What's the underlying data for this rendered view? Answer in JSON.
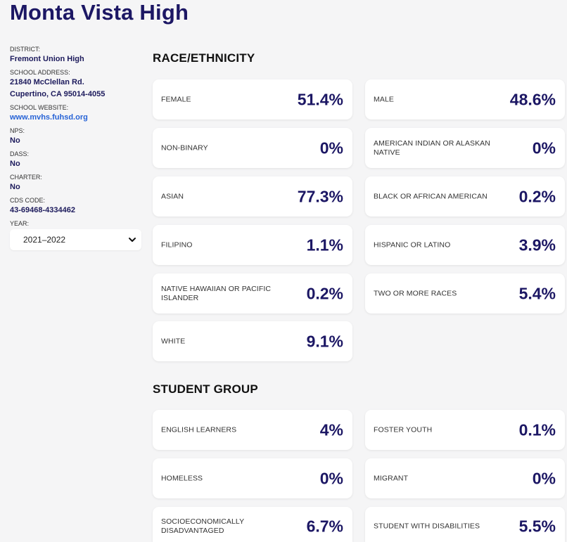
{
  "school": {
    "name": "Monta Vista High"
  },
  "sidebar": {
    "district_label": "DISTRICT:",
    "district": "Fremont Union High",
    "address_label": "SCHOOL ADDRESS:",
    "address_line1": "21840 McClellan Rd.",
    "address_line2": "Cupertino, CA 95014-4055",
    "website_label": "SCHOOL WEBSITE:",
    "website": "www.mvhs.fuhsd.org",
    "nps_label": "NPS:",
    "nps": "No",
    "dass_label": "DASS:",
    "dass": "No",
    "charter_label": "CHARTER:",
    "charter": "No",
    "cds_label": "CDS CODE:",
    "cds": "43-69468-4334462",
    "year_label": "YEAR:",
    "year": "2021–2022"
  },
  "race": {
    "title": "RACE/ETHNICITY",
    "cards": [
      {
        "label": "FEMALE",
        "value": "51.4%"
      },
      {
        "label": "MALE",
        "value": "48.6%"
      },
      {
        "label": "NON-BINARY",
        "value": "0%"
      },
      {
        "label": "AMERICAN INDIAN OR ALASKAN NATIVE",
        "value": "0%"
      },
      {
        "label": "ASIAN",
        "value": "77.3%"
      },
      {
        "label": "BLACK OR AFRICAN AMERICAN",
        "value": "0.2%"
      },
      {
        "label": "FILIPINO",
        "value": "1.1%"
      },
      {
        "label": "HISPANIC OR LATINO",
        "value": "3.9%"
      },
      {
        "label": "NATIVE HAWAIIAN OR PACIFIC ISLANDER",
        "value": "0.2%"
      },
      {
        "label": "TWO OR MORE RACES",
        "value": "5.4%"
      },
      {
        "label": "WHITE",
        "value": "9.1%"
      }
    ]
  },
  "group": {
    "title": "STUDENT GROUP",
    "cards": [
      {
        "label": "ENGLISH LEARNERS",
        "value": "4%"
      },
      {
        "label": "FOSTER YOUTH",
        "value": "0.1%"
      },
      {
        "label": "HOMELESS",
        "value": "0%"
      },
      {
        "label": "MIGRANT",
        "value": "0%"
      },
      {
        "label": "SOCIOECONOMICALLY DISADVANTAGED",
        "value": "6.7%"
      },
      {
        "label": "STUDENT WITH DISABILITIES",
        "value": "5.5%"
      }
    ]
  },
  "icons": {
    "year_dropdown": "chevron-down-icon"
  },
  "colors": {
    "accent": "#1c1764",
    "link": "#2763d6",
    "background": "#f5f5f6",
    "card": "#ffffff"
  }
}
